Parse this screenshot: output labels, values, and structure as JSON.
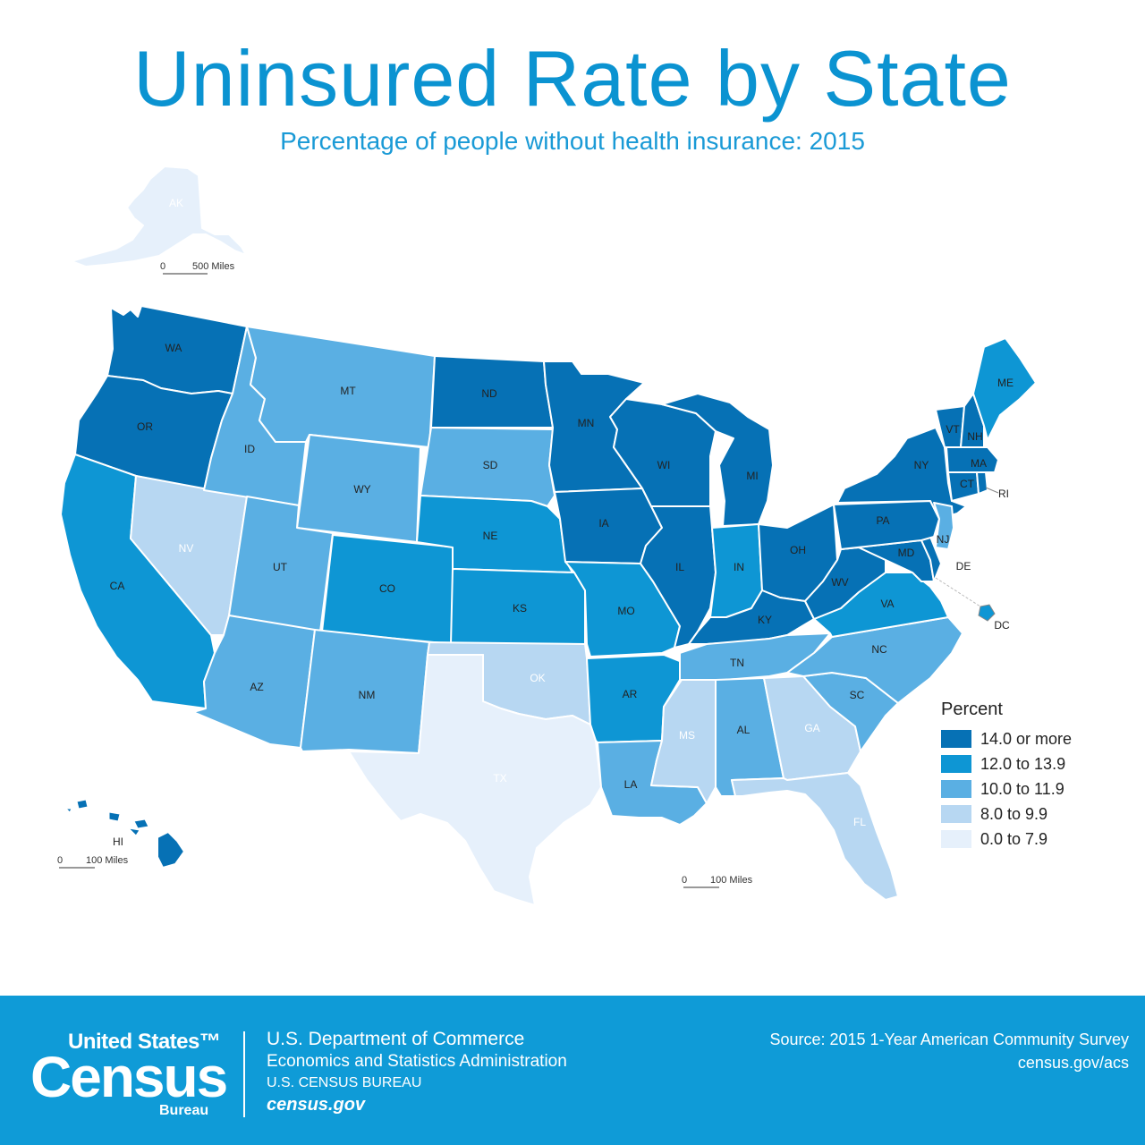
{
  "title": "Uninsured Rate by State",
  "subtitle": "Percentage of people without health insurance: 2015",
  "legend": {
    "title": "Percent",
    "classes": [
      {
        "label": "14.0 or more",
        "color": "#0671b5"
      },
      {
        "label": "12.0 to 13.9",
        "color": "#0e96d4"
      },
      {
        "label": "10.0 to 11.9",
        "color": "#5aafe3"
      },
      {
        "label": "8.0 to 9.9",
        "color": "#b7d7f2"
      },
      {
        "label": "0.0 to 7.9",
        "color": "#e6f0fb"
      }
    ]
  },
  "states": {
    "AK": 4,
    "WA": 0,
    "OR": 0,
    "CA": 1,
    "NV": 3,
    "ID": 2,
    "MT": 2,
    "WY": 2,
    "UT": 2,
    "AZ": 2,
    "CO": 1,
    "NM": 2,
    "ND": 0,
    "SD": 2,
    "NE": 1,
    "KS": 1,
    "OK": 3,
    "TX": 4,
    "MN": 0,
    "IA": 0,
    "MO": 1,
    "AR": 1,
    "LA": 2,
    "WI": 0,
    "IL": 0,
    "MI": 0,
    "IN": 1,
    "OH": 0,
    "KY": 0,
    "TN": 2,
    "MS": 3,
    "AL": 2,
    "GA": 3,
    "FL": 3,
    "SC": 2,
    "NC": 2,
    "VA": 1,
    "WV": 0,
    "PA": 0,
    "NY": 0,
    "VT": 0,
    "NH": 0,
    "ME": 1,
    "MA": 0,
    "CT": 0,
    "RI": 0,
    "NJ": 2,
    "DE": 0,
    "MD": 0,
    "DC": 1,
    "HI": 0
  },
  "scales": {
    "alaska": "500 Miles",
    "hawaii": "100 Miles",
    "main": "100 Miles",
    "zero": "0"
  },
  "footer": {
    "logo_top": "United States™",
    "logo_main": "Census",
    "logo_bottom": "Bureau",
    "dept_line1": "U.S. Department of Commerce",
    "dept_line2": "Economics and Statistics Administration",
    "dept_line3": "U.S. CENSUS BUREAU",
    "dept_line4": "census.gov",
    "source_line1": "Source: 2015 1-Year American Community Survey",
    "source_line2": "census.gov/acs"
  }
}
